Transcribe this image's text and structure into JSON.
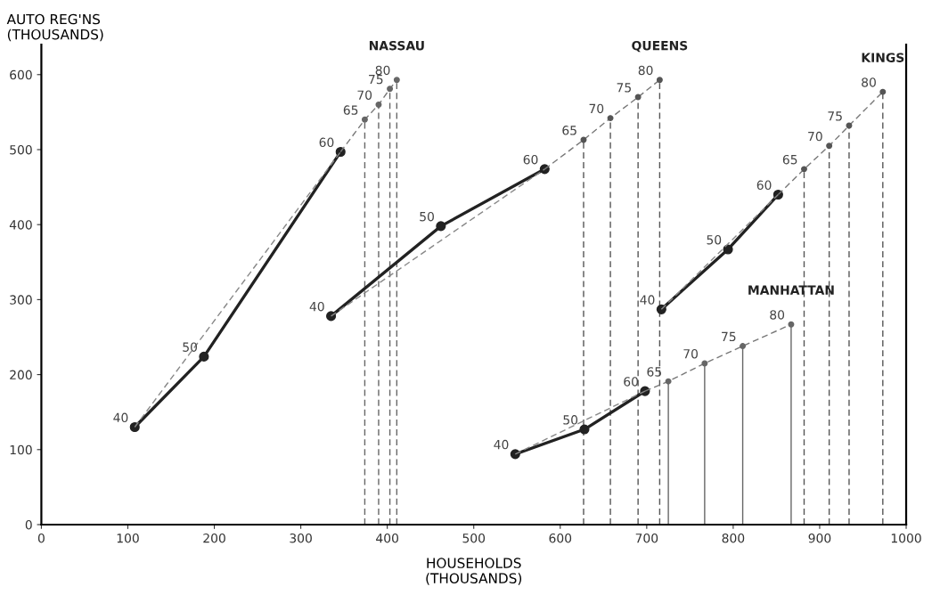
{
  "chart_data": {
    "type": "line",
    "xlabel": "HOUSEHOLDS\n(THOUSANDS)",
    "ylabel": "AUTO REG'NS\n(THOUSANDS)",
    "xlim": [
      0,
      1000
    ],
    "ylim": [
      0,
      640
    ],
    "xticks": [
      0,
      100,
      200,
      300,
      400,
      500,
      600,
      700,
      800,
      900,
      1000
    ],
    "yticks": [
      0,
      100,
      200,
      300,
      400,
      500,
      600
    ],
    "series": [
      {
        "type": "line",
        "color": "#222222",
        "line_style": "solid",
        "marker": "circle",
        "x": [
          108,
          188,
          346
        ],
        "values": [
          130,
          224,
          497
        ]
      },
      {
        "type": "line",
        "color": "#888888",
        "line_style": "dashed",
        "marker": "none",
        "x": [
          108,
          346
        ],
        "values": [
          130,
          497
        ]
      },
      {
        "type": "line",
        "name": "NASSAU",
        "color": "#777777",
        "line_style": "dashed",
        "marker": "none",
        "x": [
          346,
          374,
          390,
          403,
          411
        ],
        "values": [
          497,
          540,
          560,
          581,
          593
        ]
      },
      {
        "type": "lollipop",
        "color": "#666666",
        "line_style": "dashed",
        "marker": "circle",
        "x": [
          374,
          390,
          403,
          411
        ],
        "values": [
          540,
          560,
          581,
          593
        ]
      },
      {
        "type": "line",
        "color": "#222222",
        "line_style": "solid",
        "marker": "circle",
        "x": [
          335,
          462,
          582
        ],
        "values": [
          278,
          398,
          474
        ]
      },
      {
        "type": "line",
        "color": "#888888",
        "line_style": "dashed",
        "marker": "none",
        "x": [
          335,
          582
        ],
        "values": [
          278,
          474
        ]
      },
      {
        "type": "line",
        "name": "QUEENS",
        "color": "#777777",
        "line_style": "dashed",
        "marker": "none",
        "x": [
          582,
          627,
          658,
          690,
          715
        ],
        "values": [
          474,
          513,
          542,
          570,
          593
        ]
      },
      {
        "type": "lollipop",
        "color": "#555555",
        "line_style": "dashed",
        "marker": "circle",
        "x": [
          627,
          658,
          690,
          715
        ],
        "values": [
          513,
          542,
          570,
          593
        ]
      },
      {
        "type": "line",
        "color": "#222222",
        "line_style": "solid",
        "marker": "circle",
        "x": [
          717,
          794,
          852
        ],
        "values": [
          287,
          367,
          440
        ]
      },
      {
        "type": "line",
        "color": "#888888",
        "line_style": "dashed",
        "marker": "none",
        "x": [
          717,
          852
        ],
        "values": [
          287,
          440
        ]
      },
      {
        "type": "line",
        "name": "KINGS",
        "color": "#777777",
        "line_style": "dashed",
        "marker": "none",
        "x": [
          852,
          882,
          911,
          934,
          973
        ],
        "values": [
          440,
          474,
          505,
          532,
          577
        ]
      },
      {
        "type": "lollipop",
        "color": "#555555",
        "line_style": "dashed",
        "marker": "circle",
        "x": [
          882,
          911,
          934,
          973
        ],
        "values": [
          474,
          505,
          532,
          577
        ]
      },
      {
        "type": "line",
        "color": "#222222",
        "line_style": "solid",
        "marker": "circle",
        "x": [
          548,
          628,
          698
        ],
        "values": [
          94,
          127,
          178
        ]
      },
      {
        "type": "line",
        "color": "#888888",
        "line_style": "dashed",
        "marker": "none",
        "x": [
          548,
          698
        ],
        "values": [
          94,
          178
        ]
      },
      {
        "type": "line",
        "name": "MANHATTAN",
        "color": "#777777",
        "line_style": "dashed",
        "marker": "none",
        "x": [
          698,
          725,
          767,
          811,
          867
        ],
        "values": [
          178,
          191,
          215,
          238,
          267
        ]
      },
      {
        "type": "lollipop",
        "color": "#666666",
        "line_style": "solid",
        "marker": "circle",
        "x": [
          725,
          767,
          811,
          867
        ],
        "values": [
          191,
          215,
          238,
          267
        ]
      }
    ],
    "annotations": [
      {
        "text": "40",
        "x": 108,
        "y": 130
      },
      {
        "text": "50",
        "x": 188,
        "y": 224
      },
      {
        "text": "60",
        "x": 346,
        "y": 497
      },
      {
        "text": "65",
        "x": 374,
        "y": 540
      },
      {
        "text": "70",
        "x": 390,
        "y": 560
      },
      {
        "text": "75",
        "x": 403,
        "y": 581
      },
      {
        "text": "80",
        "x": 411,
        "y": 593
      },
      {
        "text": "40",
        "x": 335,
        "y": 278
      },
      {
        "text": "50",
        "x": 462,
        "y": 398
      },
      {
        "text": "60",
        "x": 582,
        "y": 474
      },
      {
        "text": "65",
        "x": 627,
        "y": 513
      },
      {
        "text": "70",
        "x": 658,
        "y": 542
      },
      {
        "text": "75",
        "x": 690,
        "y": 570
      },
      {
        "text": "80",
        "x": 715,
        "y": 593
      },
      {
        "text": "40",
        "x": 717,
        "y": 287
      },
      {
        "text": "50",
        "x": 794,
        "y": 367
      },
      {
        "text": "60",
        "x": 852,
        "y": 440
      },
      {
        "text": "65",
        "x": 882,
        "y": 474
      },
      {
        "text": "70",
        "x": 911,
        "y": 505
      },
      {
        "text": "75",
        "x": 934,
        "y": 532
      },
      {
        "text": "80",
        "x": 973,
        "y": 577
      },
      {
        "text": "40",
        "x": 548,
        "y": 94
      },
      {
        "text": "50",
        "x": 628,
        "y": 127
      },
      {
        "text": "60",
        "x": 698,
        "y": 178
      },
      {
        "text": "65",
        "x": 725,
        "y": 191
      },
      {
        "text": "70",
        "x": 767,
        "y": 215
      },
      {
        "text": "75",
        "x": 811,
        "y": 238
      },
      {
        "text": "80",
        "x": 867,
        "y": 267
      }
    ]
  }
}
